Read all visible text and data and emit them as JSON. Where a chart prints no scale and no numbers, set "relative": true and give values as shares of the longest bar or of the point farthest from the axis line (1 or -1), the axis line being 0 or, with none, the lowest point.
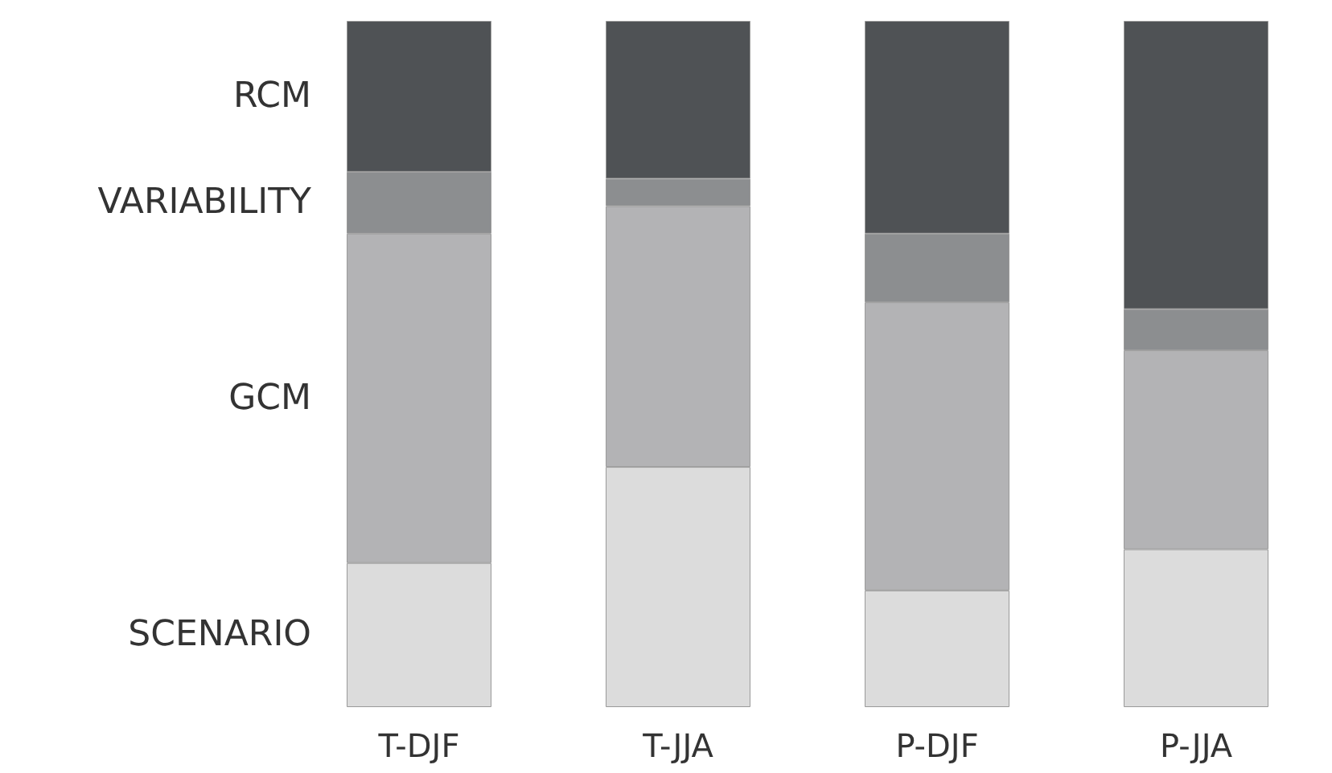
{
  "chart_data": {
    "type": "bar",
    "stacked": true,
    "relative": true,
    "legend": false,
    "grid": false,
    "categories": [
      "T-DJF",
      "T-JJA",
      "P-DJF",
      "P-JJA"
    ],
    "series": [
      {
        "name": "SCENARIO",
        "color": "#dcdcdc",
        "values": [
          0.21,
          0.35,
          0.17,
          0.23
        ]
      },
      {
        "name": "GCM",
        "color": "#b3b3b5",
        "values": [
          0.48,
          0.38,
          0.42,
          0.29
        ]
      },
      {
        "name": "VARIABILITY",
        "color": "#8c8e90",
        "values": [
          0.09,
          0.04,
          0.1,
          0.06
        ]
      },
      {
        "name": "RCM",
        "color": "#4f5255",
        "values": [
          0.22,
          0.23,
          0.31,
          0.42
        ]
      }
    ]
  }
}
